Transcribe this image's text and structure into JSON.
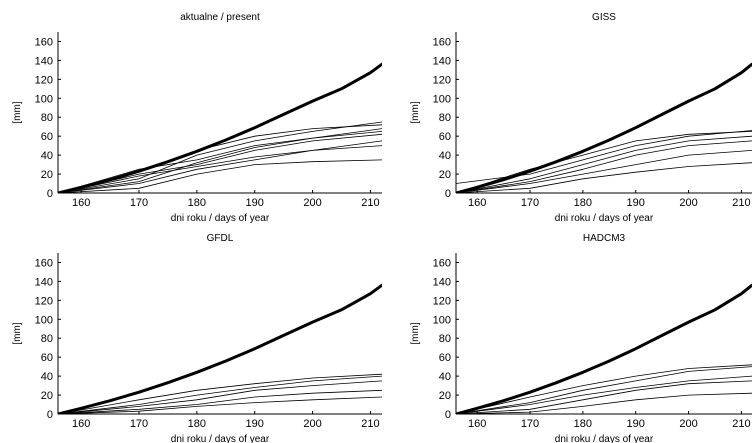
{
  "chart_data": [
    {
      "type": "line",
      "title": "aktualne / present",
      "xlabel": "dni roku / days of year",
      "ylabel": "[mm]",
      "xlim": [
        156,
        212
      ],
      "ylim": [
        0,
        170
      ],
      "xticks": [
        160,
        170,
        180,
        190,
        200,
        210
      ],
      "yticks": [
        0,
        20,
        40,
        60,
        80,
        100,
        120,
        140,
        160
      ],
      "grid": false,
      "series": [
        {
          "x": [
            156,
            160,
            165,
            170,
            175,
            180,
            185,
            190,
            195,
            200,
            205,
            210,
            212
          ],
          "y": [
            0,
            6,
            14,
            23,
            33,
            44,
            56,
            69,
            83,
            97,
            110,
            127,
            136
          ]
        },
        {
          "x": [
            156,
            170,
            180,
            190,
            200,
            212
          ],
          "y": [
            0,
            25,
            35,
            50,
            58,
            68
          ]
        },
        {
          "x": [
            156,
            170,
            180,
            190,
            200,
            212
          ],
          "y": [
            0,
            20,
            30,
            45,
            55,
            62
          ]
        },
        {
          "x": [
            156,
            170,
            180,
            190,
            200,
            212
          ],
          "y": [
            0,
            15,
            40,
            55,
            65,
            75
          ]
        },
        {
          "x": [
            156,
            170,
            180,
            190,
            200,
            212
          ],
          "y": [
            0,
            10,
            25,
            35,
            45,
            55
          ]
        },
        {
          "x": [
            156,
            170,
            180,
            190,
            200,
            212
          ],
          "y": [
            0,
            5,
            20,
            30,
            33,
            35
          ]
        },
        {
          "x": [
            156,
            170,
            180,
            190,
            200,
            212
          ],
          "y": [
            0,
            22,
            45,
            60,
            68,
            72
          ]
        },
        {
          "x": [
            156,
            170,
            180,
            190,
            200,
            212
          ],
          "y": [
            0,
            18,
            28,
            38,
            45,
            50
          ]
        },
        {
          "x": [
            156,
            170,
            180,
            190,
            200,
            212
          ],
          "y": [
            0,
            12,
            32,
            48,
            58,
            65
          ]
        }
      ]
    },
    {
      "type": "line",
      "title": "GISS",
      "xlabel": "dni roku / days of year",
      "ylabel": "[mm]",
      "xlim": [
        156,
        212
      ],
      "ylim": [
        0,
        170
      ],
      "xticks": [
        160,
        170,
        180,
        190,
        200,
        210
      ],
      "yticks": [
        0,
        20,
        40,
        60,
        80,
        100,
        120,
        140,
        160
      ],
      "grid": false,
      "series": [
        {
          "x": [
            156,
            160,
            165,
            170,
            175,
            180,
            185,
            190,
            195,
            200,
            205,
            210,
            212
          ],
          "y": [
            0,
            6,
            14,
            23,
            33,
            44,
            56,
            69,
            83,
            97,
            110,
            127,
            136
          ]
        },
        {
          "x": [
            156,
            170,
            180,
            190,
            200,
            212
          ],
          "y": [
            10,
            20,
            35,
            50,
            60,
            66
          ]
        },
        {
          "x": [
            156,
            170,
            180,
            190,
            200,
            212
          ],
          "y": [
            0,
            15,
            30,
            45,
            55,
            60
          ]
        },
        {
          "x": [
            156,
            170,
            180,
            190,
            200,
            212
          ],
          "y": [
            0,
            10,
            20,
            30,
            40,
            45
          ]
        },
        {
          "x": [
            156,
            170,
            180,
            190,
            200,
            212
          ],
          "y": [
            0,
            5,
            15,
            22,
            28,
            32
          ]
        },
        {
          "x": [
            156,
            170,
            180,
            190,
            200,
            212
          ],
          "y": [
            0,
            25,
            40,
            55,
            62,
            65
          ]
        },
        {
          "x": [
            156,
            170,
            180,
            190,
            200,
            212
          ],
          "y": [
            0,
            12,
            25,
            40,
            50,
            55
          ]
        }
      ]
    },
    {
      "type": "line",
      "title": "GFDL",
      "xlabel": "dni roku / days of year",
      "ylabel": "[mm]",
      "xlim": [
        156,
        212
      ],
      "ylim": [
        0,
        170
      ],
      "xticks": [
        160,
        170,
        180,
        190,
        200,
        210
      ],
      "yticks": [
        0,
        20,
        40,
        60,
        80,
        100,
        120,
        140,
        160
      ],
      "grid": false,
      "series": [
        {
          "x": [
            156,
            160,
            165,
            170,
            175,
            180,
            185,
            190,
            195,
            200,
            205,
            210,
            212
          ],
          "y": [
            0,
            6,
            14,
            23,
            33,
            44,
            56,
            69,
            83,
            97,
            110,
            127,
            136
          ]
        },
        {
          "x": [
            156,
            170,
            180,
            190,
            200,
            212
          ],
          "y": [
            0,
            10,
            20,
            28,
            35,
            40
          ]
        },
        {
          "x": [
            156,
            170,
            180,
            190,
            200,
            212
          ],
          "y": [
            0,
            15,
            25,
            32,
            38,
            42
          ]
        },
        {
          "x": [
            156,
            170,
            180,
            190,
            200,
            212
          ],
          "y": [
            0,
            5,
            10,
            18,
            22,
            25
          ]
        },
        {
          "x": [
            156,
            170,
            180,
            190,
            200,
            212
          ],
          "y": [
            0,
            8,
            15,
            25,
            30,
            35
          ]
        },
        {
          "x": [
            156,
            170,
            180,
            190,
            200,
            212
          ],
          "y": [
            0,
            3,
            8,
            12,
            15,
            18
          ]
        }
      ]
    },
    {
      "type": "line",
      "title": "HADCM3",
      "xlabel": "dni roku / days of year",
      "ylabel": "[mm]",
      "xlim": [
        156,
        212
      ],
      "ylim": [
        0,
        170
      ],
      "xticks": [
        160,
        170,
        180,
        190,
        200,
        210
      ],
      "yticks": [
        0,
        20,
        40,
        60,
        80,
        100,
        120,
        140,
        160
      ],
      "grid": false,
      "series": [
        {
          "x": [
            156,
            160,
            165,
            170,
            175,
            180,
            185,
            190,
            195,
            200,
            205,
            210,
            212
          ],
          "y": [
            0,
            6,
            14,
            23,
            33,
            44,
            56,
            69,
            83,
            97,
            110,
            127,
            136
          ]
        },
        {
          "x": [
            156,
            170,
            180,
            190,
            200,
            212
          ],
          "y": [
            0,
            12,
            25,
            35,
            45,
            50
          ]
        },
        {
          "x": [
            156,
            170,
            180,
            190,
            200,
            212
          ],
          "y": [
            0,
            18,
            30,
            40,
            48,
            52
          ]
        },
        {
          "x": [
            156,
            170,
            180,
            190,
            200,
            212
          ],
          "y": [
            0,
            5,
            15,
            25,
            32,
            35
          ]
        },
        {
          "x": [
            156,
            170,
            180,
            190,
            200,
            212
          ],
          "y": [
            0,
            10,
            20,
            28,
            35,
            40
          ]
        },
        {
          "x": [
            156,
            170,
            180,
            190,
            200,
            212
          ],
          "y": [
            0,
            2,
            8,
            15,
            20,
            22
          ]
        }
      ]
    }
  ]
}
